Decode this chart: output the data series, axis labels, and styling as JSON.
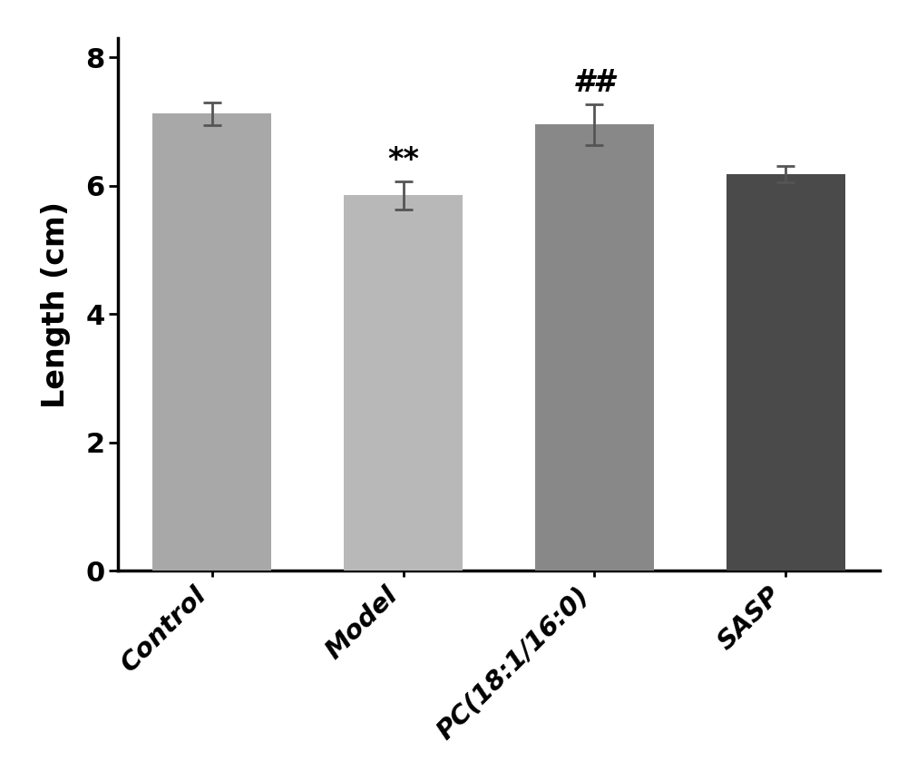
{
  "categories": [
    "Control",
    "Model",
    "PC(18:1/16:0)",
    "SASP"
  ],
  "values": [
    7.12,
    5.85,
    6.95,
    6.18
  ],
  "errors": [
    0.18,
    0.22,
    0.32,
    0.13
  ],
  "bar_colors": [
    "#a8a8a8",
    "#b8b8b8",
    "#888888",
    "#4a4a4a"
  ],
  "ylabel": "Length (cm)",
  "ylim": [
    0,
    8.3
  ],
  "yticks": [
    0,
    2,
    4,
    6,
    8
  ],
  "annotations": [
    {
      "index": 0,
      "text": ""
    },
    {
      "index": 1,
      "text": "**"
    },
    {
      "index": 2,
      "text": "##"
    },
    {
      "index": 3,
      "text": ""
    }
  ],
  "bar_width": 0.62,
  "tick_label_fontsize": 21,
  "ylabel_fontsize": 24,
  "annotation_fontsize": 24,
  "ytick_fontsize": 22,
  "background_color": "#ffffff",
  "spine_linewidth": 2.5,
  "xtick_rotation": 45
}
